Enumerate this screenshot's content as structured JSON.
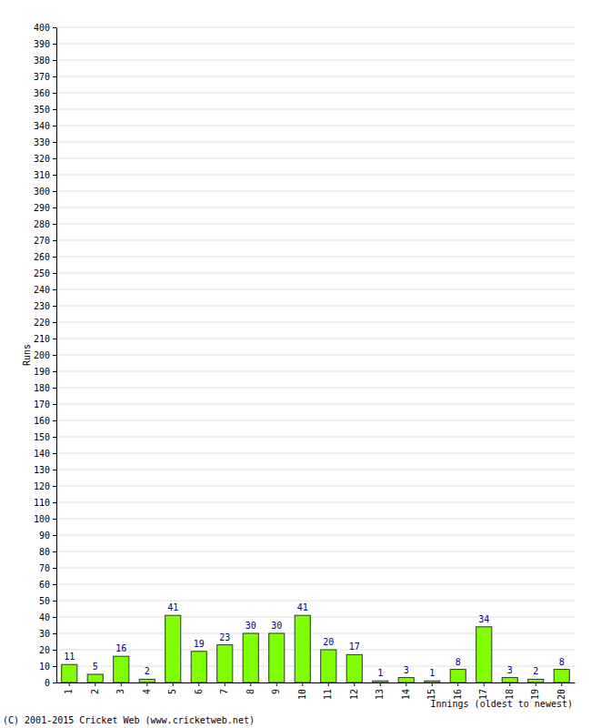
{
  "chart_data": {
    "type": "bar",
    "x_label": "Innings (oldest to newest)",
    "y_label": "Runs",
    "annotations": [
      "(C) 2001-2015 Cricket Web (www.cricketweb.net)"
    ],
    "categories": [
      "1",
      "2",
      "3",
      "4",
      "5",
      "6",
      "7",
      "8",
      "9",
      "10",
      "11",
      "12",
      "13",
      "14",
      "15",
      "16",
      "17",
      "18",
      "19",
      "20"
    ],
    "values": [
      11,
      5,
      16,
      2,
      41,
      19,
      23,
      30,
      30,
      41,
      20,
      17,
      1,
      3,
      1,
      8,
      34,
      3,
      2,
      8
    ],
    "color": "#80ff00",
    "ylim": [
      0,
      400
    ],
    "yticks": [
      0,
      10,
      20,
      30,
      40,
      50,
      60,
      70,
      80,
      90,
      100,
      110,
      120,
      130,
      140,
      150,
      160,
      170,
      180,
      190,
      200,
      210,
      220,
      230,
      240,
      250,
      260,
      270,
      280,
      290,
      300,
      310,
      320,
      330,
      340,
      350,
      360,
      370,
      380,
      390,
      400
    ],
    "grid": true,
    "data_labels": true
  }
}
